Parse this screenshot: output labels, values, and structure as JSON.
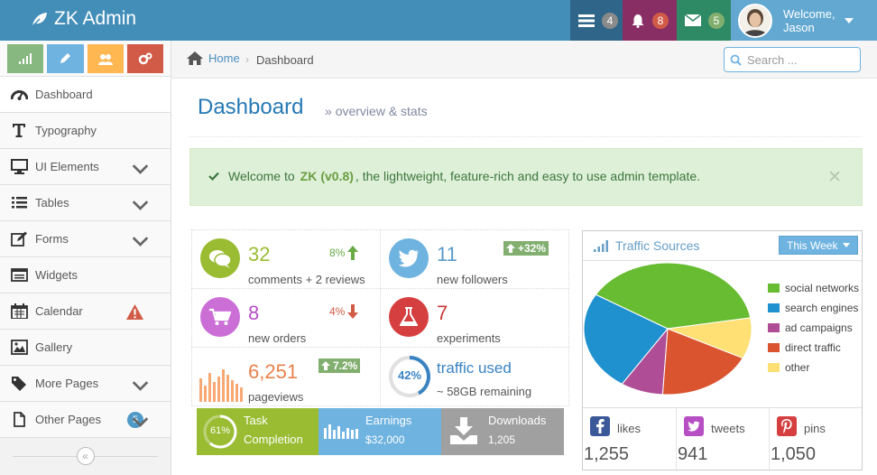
{
  "app": {
    "title": "ZK Admin"
  },
  "topbar": {
    "tasks_count": "4",
    "notifications_count": "8",
    "messages_count": "5",
    "welcome": "Welcome,",
    "user_name": "Jason",
    "colors": {
      "bar": "#438eb9",
      "tasks": "#2e6589",
      "notifications": "#892e65",
      "messages": "#2e8965",
      "user": "#62a8d1"
    }
  },
  "sidebar": {
    "items": [
      {
        "label": "Dashboard",
        "icon": "dashboard-icon"
      },
      {
        "label": "Typography",
        "icon": "text-icon"
      },
      {
        "label": "UI Elements",
        "icon": "desktop-icon"
      },
      {
        "label": "Tables",
        "icon": "list-icon"
      },
      {
        "label": "Forms",
        "icon": "edit-icon"
      },
      {
        "label": "Widgets",
        "icon": "widgets-icon"
      },
      {
        "label": "Calendar",
        "icon": "calendar-icon"
      },
      {
        "label": "Gallery",
        "icon": "picture-icon"
      },
      {
        "label": "More Pages",
        "icon": "tag-icon"
      },
      {
        "label": "Other Pages",
        "icon": "file-icon",
        "badge": "5"
      }
    ]
  },
  "breadcrumb": {
    "home": "Home",
    "current": "Dashboard"
  },
  "search": {
    "placeholder": "Search ..."
  },
  "header": {
    "title": "Dashboard",
    "subtitle": "overview & stats"
  },
  "alert": {
    "prefix": "Welcome to",
    "brand": "ZK",
    "version": "(v0.8)",
    "text": ", the lightweight, feature-rich and easy to use admin template."
  },
  "infoboxes": {
    "comments": {
      "value": "32",
      "desc": "comments + 2 reviews",
      "stat": "8%"
    },
    "followers": {
      "value": "11",
      "desc": "new followers",
      "stat": "+32%"
    },
    "orders": {
      "value": "8",
      "desc": "new orders",
      "stat": "4%"
    },
    "experiments": {
      "value": "7",
      "desc": "experiments"
    },
    "pageviews": {
      "value": "6,251",
      "desc": "pageviews",
      "stat": "7.2%"
    },
    "traffic": {
      "value": "traffic used",
      "desc": "~ 58GB remaining",
      "percent": "42%",
      "fraction": 0.42
    }
  },
  "stat_boxes": {
    "task": {
      "percent": "61%",
      "fraction": 0.61,
      "line1": "Task",
      "line2": "Completion"
    },
    "earnings": {
      "label": "Earnings",
      "value": "$32,000"
    },
    "downloads": {
      "label": "Downloads",
      "value": "1,205"
    }
  },
  "traffic_sources": {
    "title": "Traffic Sources",
    "range": "This Week",
    "chart_data": {
      "type": "pie",
      "labels": [
        "social networks",
        "search engines",
        "ad campaigns",
        "direct traffic",
        "other"
      ],
      "values": [
        38.7,
        24.5,
        8.2,
        18.6,
        10
      ],
      "colors": [
        "#68bc31",
        "#2091cf",
        "#af4e96",
        "#da5430",
        "#fee074"
      ]
    }
  },
  "social": {
    "likes": {
      "label": "likes",
      "value": "1,255"
    },
    "tweets": {
      "label": "tweets",
      "value": "941"
    },
    "pins": {
      "label": "pins",
      "value": "1,050"
    }
  }
}
